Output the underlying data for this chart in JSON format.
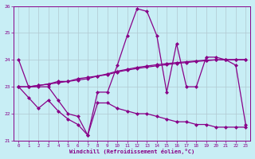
{
  "xlabel": "Windchill (Refroidissement éolien,°C)",
  "background_color": "#c8eef5",
  "line_color": "#880088",
  "grid_color": "#b0c8d0",
  "xlim": [
    -0.5,
    23.5
  ],
  "ylim": [
    21,
    26
  ],
  "yticks": [
    21,
    22,
    23,
    24,
    25,
    26
  ],
  "xticks": [
    0,
    1,
    2,
    3,
    4,
    5,
    6,
    7,
    8,
    9,
    10,
    11,
    12,
    13,
    14,
    15,
    16,
    17,
    18,
    19,
    20,
    21,
    22,
    23
  ],
  "line1_x": [
    0,
    1,
    2,
    3,
    4,
    5,
    6,
    7,
    8,
    9,
    10,
    11,
    12,
    13,
    14,
    15,
    16,
    17,
    18,
    19,
    20,
    21,
    22,
    23
  ],
  "line1_y": [
    24.0,
    23.0,
    23.0,
    23.0,
    22.5,
    22.0,
    21.9,
    21.2,
    22.8,
    22.8,
    23.8,
    24.9,
    25.9,
    25.8,
    24.9,
    22.8,
    24.6,
    23.0,
    23.0,
    24.1,
    24.1,
    24.0,
    23.8,
    21.6
  ],
  "line2_x": [
    0,
    1,
    2,
    3,
    4,
    5,
    6,
    7,
    8,
    9,
    10,
    11,
    12,
    13,
    14,
    15,
    16,
    17,
    18,
    19,
    20,
    21,
    22,
    23
  ],
  "line2_y": [
    23.0,
    23.0,
    23.05,
    23.1,
    23.15,
    23.2,
    23.25,
    23.3,
    23.4,
    23.45,
    23.55,
    23.62,
    23.68,
    23.73,
    23.78,
    23.82,
    23.87,
    23.9,
    23.94,
    23.97,
    24.0,
    24.0,
    24.0,
    24.0
  ],
  "line3_x": [
    0,
    1,
    2,
    3,
    4,
    5,
    6,
    7,
    8,
    9,
    10,
    11,
    12,
    13,
    14,
    15,
    16,
    17,
    18,
    19,
    20,
    21,
    22,
    23
  ],
  "line3_y": [
    23.0,
    23.0,
    23.05,
    23.1,
    23.2,
    23.2,
    23.3,
    23.35,
    23.4,
    23.48,
    23.58,
    23.65,
    23.72,
    23.77,
    23.82,
    23.86,
    23.9,
    23.93,
    23.96,
    23.99,
    24.0,
    24.01,
    24.01,
    24.01
  ],
  "line4_x": [
    0,
    1,
    2,
    3,
    4,
    5,
    6,
    7,
    8,
    9,
    10,
    11,
    12,
    13,
    14,
    15,
    16,
    17,
    18,
    19,
    20,
    21,
    22,
    23
  ],
  "line4_y": [
    23.0,
    22.6,
    22.2,
    22.5,
    22.1,
    21.8,
    21.6,
    21.2,
    22.4,
    22.4,
    22.2,
    22.1,
    22.0,
    22.0,
    21.9,
    21.8,
    21.7,
    21.7,
    21.6,
    21.6,
    21.5,
    21.5,
    21.5,
    21.5
  ]
}
